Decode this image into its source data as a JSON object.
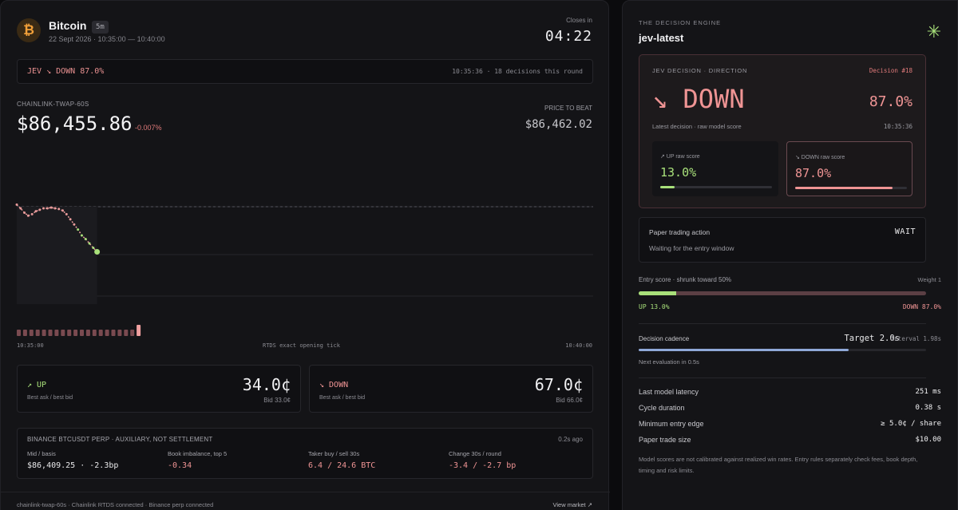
{
  "market": {
    "asset_name": "Bitcoin",
    "timeframe": "5m",
    "date_range": "22 Sept 2026 · 10:35:00 — 10:40:00",
    "closes_label": "Closes in",
    "closes_time": "04:22"
  },
  "signal_bar": {
    "left": "JEV ↘ DOWN 87.0%",
    "right": "10:35:36 · 18 decisions this round"
  },
  "price": {
    "feed_label": "CHAINLINK-TWAP-60S",
    "current": "$86,455.86",
    "change": "-0.007%",
    "beat_label": "PRICE TO BEAT",
    "beat_value": "$86,462.02"
  },
  "chart_data": {
    "type": "line",
    "x_start": "10:35:00",
    "x_end": "10:40:00",
    "y_reference": 86462.02,
    "y_last": 86455.86,
    "series_values": [
      86462.3,
      86461.8,
      86461.2,
      86460.8,
      86461.0,
      86461.4,
      86461.6,
      86461.8,
      86461.8,
      86461.9,
      86461.8,
      86461.7,
      86461.5,
      86461.0,
      86460.3,
      86459.6,
      86458.9,
      86458.1,
      86457.6,
      86457.0,
      86456.4,
      86455.86
    ],
    "tick_markers": 20,
    "opening_tick_label": "RTDS exact opening tick"
  },
  "axis": {
    "start": "10:35:00",
    "middle": "RTDS exact opening tick",
    "end": "10:40:00"
  },
  "sides": {
    "up": {
      "title": "↗ UP",
      "sub": "Best ask / best bid",
      "price": "34.0¢",
      "bid": "Bid 33.0¢"
    },
    "down": {
      "title": "↘ DOWN",
      "sub": "Best ask / best bid",
      "price": "67.0¢",
      "bid": "Bid 66.0¢"
    }
  },
  "binance": {
    "title": "BINANCE BTCUSDT PERP · AUXILIARY, NOT SETTLEMENT",
    "age": "0.2s ago",
    "cols": [
      {
        "label": "Mid / basis",
        "value": "$86,409.25 · -2.3bp"
      },
      {
        "label": "Book imbalance, top 5",
        "value": "-0.34"
      },
      {
        "label": "Taker buy / sell 30s",
        "value": "6.4 / 24.6 BTC"
      },
      {
        "label": "Change 30s / round",
        "value": "-3.4 / -2.7 bp"
      }
    ]
  },
  "footer": {
    "status": "chainlink-twap-60s · Chainlink RTDS connected · Binance perp connected",
    "link": "View market ↗"
  },
  "engine": {
    "label": "THE DECISION ENGINE",
    "name": "jev-latest",
    "decision_label": "JEV DECISION · DIRECTION",
    "decision_number": "Decision #18",
    "direction": "↘ DOWN",
    "confidence": "87.0%",
    "latest_label": "Latest decision · raw model score",
    "latest_time": "10:35:36",
    "up_score_label": "↗ UP raw score",
    "up_score": "13.0%",
    "up_fraction": 0.13,
    "down_score_label": "↘ DOWN raw score",
    "down_score": "87.0%",
    "down_fraction": 0.87
  },
  "paper": {
    "title": "Paper trading action",
    "action": "WAIT",
    "sub": "Waiting for the entry window"
  },
  "entry": {
    "label": "Entry score · shrunk toward 50%",
    "weight": "Weight 1",
    "up_fraction": 0.13,
    "up_text": "UP  13.0%",
    "down_text": "DOWN  87.0%"
  },
  "cadence": {
    "label": "Decision cadence",
    "target": "Target 2.0s",
    "interval": "Interval 1.98s",
    "fraction": 0.73,
    "next": "Next evaluation in 0.5s"
  },
  "stats": [
    {
      "label": "Last model latency",
      "value": "251 ms"
    },
    {
      "label": "Cycle duration",
      "value": "0.38 s"
    },
    {
      "label": "Minimum entry edge",
      "value": "≥ 5.0¢ / share"
    },
    {
      "label": "Paper trade size",
      "value": "$10.00"
    }
  ],
  "note": "Model scores are not calibrated against realized win rates. Entry rules separately check fees, book depth, timing and risk limits.",
  "colors": {
    "up": "#a8e07a",
    "down": "#ef9494",
    "accent_blue": "#8fa8d8",
    "btc": "#f3a13a"
  }
}
